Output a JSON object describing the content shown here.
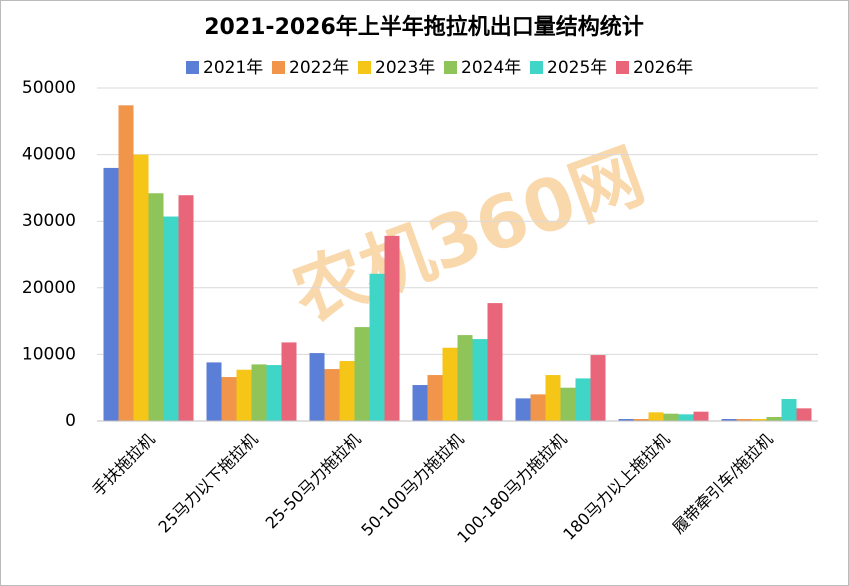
{
  "chart_data": {
    "type": "bar",
    "title": "2021-2026年上半年拖拉机出口量结构统计",
    "watermark": "农机360网",
    "categories": [
      "手扶拖拉机",
      "25马力以下拖拉机",
      "25-50马力拖拉机",
      "50-100马力拖拉机",
      "100-180马力拖拉机",
      "180马力以上拖拉机",
      "履带牵引车/拖拉机"
    ],
    "series": [
      {
        "name": "2021年",
        "color": "#5b7fd6",
        "values": [
          38000,
          8800,
          10200,
          5400,
          3400,
          300,
          300
        ]
      },
      {
        "name": "2022年",
        "color": "#f0954a",
        "values": [
          47400,
          6600,
          7800,
          6900,
          4000,
          300,
          300
        ]
      },
      {
        "name": "2023年",
        "color": "#f5c518",
        "values": [
          40000,
          7700,
          9000,
          11000,
          6900,
          1300,
          300
        ]
      },
      {
        "name": "2024年",
        "color": "#8fc45a",
        "values": [
          34200,
          8500,
          14100,
          12900,
          5000,
          1100,
          600
        ]
      },
      {
        "name": "2025年",
        "color": "#3fd6c8",
        "values": [
          30700,
          8400,
          22100,
          12300,
          6400,
          1000,
          3300
        ]
      },
      {
        "name": "2026年",
        "color": "#e8657a",
        "values": [
          33900,
          11800,
          27800,
          17700,
          9900,
          1400,
          1900
        ]
      }
    ],
    "ylim": [
      0,
      50000
    ],
    "yticks": [
      0,
      10000,
      20000,
      30000,
      40000,
      50000
    ],
    "grid": true,
    "legend": "top"
  }
}
